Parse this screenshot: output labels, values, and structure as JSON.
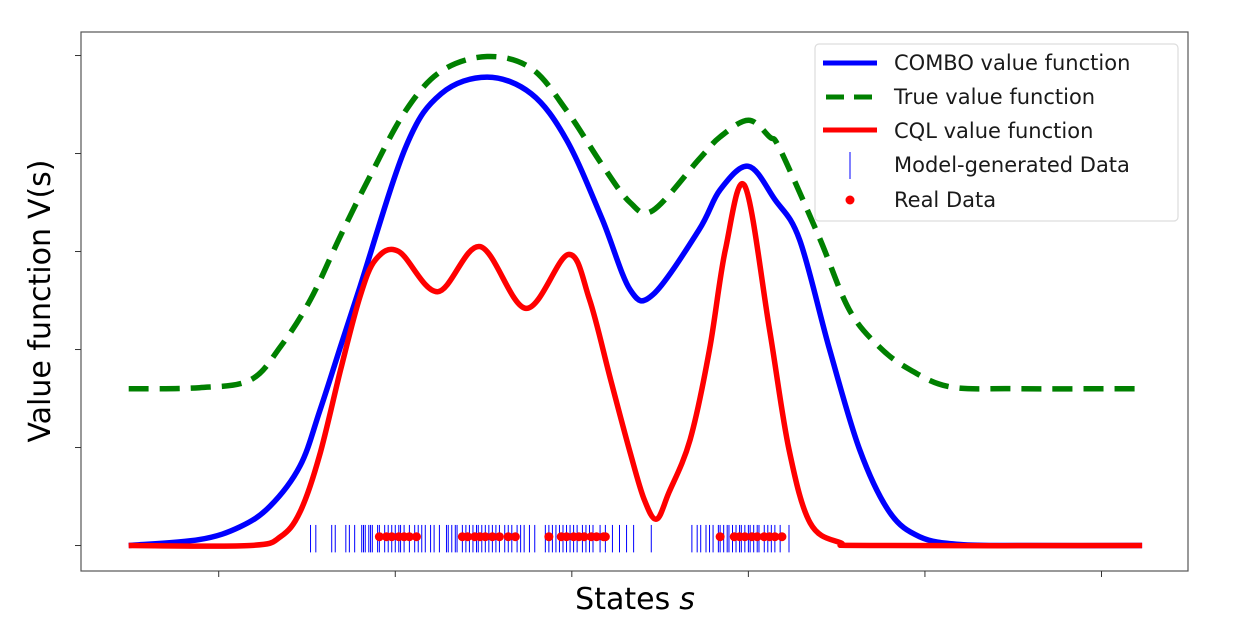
{
  "chart_data": {
    "type": "line",
    "title": "",
    "xlabel": "States",
    "xlabel_var": "s",
    "ylabel": "Value function",
    "ylabel_var": "V(s)",
    "xlim": [
      -2.78,
      3.49
    ],
    "ylim": [
      -0.26,
      5.24
    ],
    "xticks": [
      -2,
      -1,
      0,
      1,
      2,
      3
    ],
    "yticks": [
      0,
      1,
      2,
      3,
      4,
      5
    ],
    "tick_labels_shown": false,
    "grid": false,
    "legend": {
      "placement": "top-right",
      "entries": [
        {
          "label": "COMBO value function",
          "series": "combo",
          "marker": "line"
        },
        {
          "label": "True value function",
          "series": "true",
          "marker": "dashed-line"
        },
        {
          "label": "CQL value function",
          "series": "cql",
          "marker": "line"
        },
        {
          "label": "Model-generated Data",
          "series": "model_data",
          "marker": "vline"
        },
        {
          "label": "Real Data",
          "series": "real_data",
          "marker": "dot"
        }
      ]
    },
    "series": [
      {
        "id": "true",
        "name": "True value function",
        "color": "#008000",
        "style": "dashed",
        "points": [
          [
            -2.51,
            1.6
          ],
          [
            -2.11,
            1.61
          ],
          [
            -1.82,
            1.69
          ],
          [
            -1.65,
            2.03
          ],
          [
            -1.48,
            2.51
          ],
          [
            -1.31,
            3.16
          ],
          [
            -1.14,
            3.78
          ],
          [
            -0.94,
            4.44
          ],
          [
            -0.74,
            4.84
          ],
          [
            -0.48,
            4.99
          ],
          [
            -0.23,
            4.87
          ],
          [
            -0.03,
            4.44
          ],
          [
            0.17,
            3.89
          ],
          [
            0.33,
            3.5
          ],
          [
            0.46,
            3.42
          ],
          [
            0.72,
            3.94
          ],
          [
            0.84,
            4.17
          ],
          [
            1.0,
            4.34
          ],
          [
            1.12,
            4.17
          ],
          [
            1.18,
            4.04
          ],
          [
            1.4,
            3.15
          ],
          [
            1.57,
            2.41
          ],
          [
            1.74,
            2.03
          ],
          [
            1.91,
            1.8
          ],
          [
            2.14,
            1.62
          ],
          [
            2.5,
            1.6
          ],
          [
            3.23,
            1.6
          ]
        ]
      },
      {
        "id": "combo",
        "name": "COMBO value function",
        "color": "#0000ff",
        "style": "solid",
        "points": [
          [
            -2.51,
            0.0
          ],
          [
            -2.11,
            0.06
          ],
          [
            -1.88,
            0.19
          ],
          [
            -1.71,
            0.4
          ],
          [
            -1.54,
            0.81
          ],
          [
            -1.43,
            1.36
          ],
          [
            -1.31,
            2.03
          ],
          [
            -1.2,
            2.64
          ],
          [
            -0.94,
            4.07
          ],
          [
            -0.74,
            4.61
          ],
          [
            -0.48,
            4.78
          ],
          [
            -0.23,
            4.61
          ],
          [
            -0.03,
            4.14
          ],
          [
            0.17,
            3.34
          ],
          [
            0.33,
            2.61
          ],
          [
            0.46,
            2.56
          ],
          [
            0.72,
            3.22
          ],
          [
            0.84,
            3.63
          ],
          [
            1.0,
            3.87
          ],
          [
            1.15,
            3.53
          ],
          [
            1.29,
            3.12
          ],
          [
            1.46,
            2.0
          ],
          [
            1.63,
            0.98
          ],
          [
            1.8,
            0.34
          ],
          [
            1.97,
            0.09
          ],
          [
            2.2,
            0.01
          ],
          [
            2.6,
            0.0
          ],
          [
            3.23,
            0.0
          ]
        ]
      },
      {
        "id": "cql",
        "name": "CQL value function",
        "color": "#ff0000",
        "style": "solid",
        "points": [
          [
            -2.51,
            0.0
          ],
          [
            -1.82,
            0.0
          ],
          [
            -1.65,
            0.09
          ],
          [
            -1.54,
            0.34
          ],
          [
            -1.43,
            0.91
          ],
          [
            -1.31,
            1.79
          ],
          [
            -1.2,
            2.54
          ],
          [
            -1.11,
            2.92
          ],
          [
            -0.98,
            3.0
          ],
          [
            -0.76,
            2.59
          ],
          [
            -0.52,
            3.05
          ],
          [
            -0.26,
            2.42
          ],
          [
            -0.02,
            2.97
          ],
          [
            0.1,
            2.51
          ],
          [
            0.22,
            1.69
          ],
          [
            0.33,
            0.95
          ],
          [
            0.41,
            0.47
          ],
          [
            0.48,
            0.27
          ],
          [
            0.55,
            0.54
          ],
          [
            0.67,
            1.08
          ],
          [
            0.78,
            2.0
          ],
          [
            0.87,
            3.02
          ],
          [
            0.98,
            3.67
          ],
          [
            1.12,
            2.2
          ],
          [
            1.23,
            0.98
          ],
          [
            1.35,
            0.23
          ],
          [
            1.52,
            0.03
          ],
          [
            1.69,
            0.0
          ],
          [
            3.23,
            0.0
          ]
        ]
      }
    ],
    "model_data": {
      "name": "Model-generated Data",
      "color": "#0000ff",
      "y_range": [
        -0.07,
        0.21
      ],
      "x": [
        -1.48,
        -1.45,
        -1.36,
        -1.34,
        -1.28,
        -1.26,
        -1.23,
        -1.19,
        -1.18,
        -1.17,
        -1.15,
        -1.14,
        -1.13,
        -1.1,
        -1.09,
        -1.06,
        -1.04,
        -1.02,
        -1.0,
        -0.98,
        -0.97,
        -0.95,
        -0.92,
        -0.89,
        -0.87,
        -0.85,
        -0.83,
        -0.8,
        -0.78,
        -0.75,
        -0.71,
        -0.7,
        -0.68,
        -0.66,
        -0.65,
        -0.62,
        -0.6,
        -0.58,
        -0.56,
        -0.54,
        -0.53,
        -0.51,
        -0.49,
        -0.47,
        -0.45,
        -0.43,
        -0.41,
        -0.38,
        -0.36,
        -0.34,
        -0.31,
        -0.29,
        -0.27,
        -0.24,
        -0.21,
        -0.15,
        -0.13,
        -0.11,
        -0.09,
        -0.07,
        -0.05,
        -0.03,
        -0.01,
        0.01,
        0.03,
        0.06,
        0.08,
        0.1,
        0.12,
        0.16,
        0.19,
        0.23,
        0.27,
        0.31,
        0.35,
        0.45,
        0.68,
        0.71,
        0.73,
        0.76,
        0.78,
        0.8,
        0.83,
        0.84,
        0.86,
        0.88,
        0.89,
        0.91,
        0.93,
        0.95,
        0.96,
        0.98,
        1.0,
        1.01,
        1.03,
        1.05,
        1.06,
        1.09,
        1.11,
        1.13,
        1.15,
        1.18,
        1.23
      ]
    },
    "real_data": {
      "name": "Real Data",
      "color": "#ff0000",
      "y": 0.09,
      "x": [
        -1.09,
        -1.05,
        -1.02,
        -0.98,
        -0.95,
        -0.92,
        -0.88,
        -0.62,
        -0.59,
        -0.55,
        -0.52,
        -0.49,
        -0.45,
        -0.41,
        -0.36,
        -0.32,
        -0.13,
        -0.06,
        -0.03,
        0.01,
        0.04,
        0.07,
        0.11,
        0.14,
        0.18,
        0.19,
        0.84,
        0.92,
        0.95,
        0.98,
        1.02,
        1.05,
        1.09,
        1.12,
        1.15,
        1.19
      ]
    }
  }
}
